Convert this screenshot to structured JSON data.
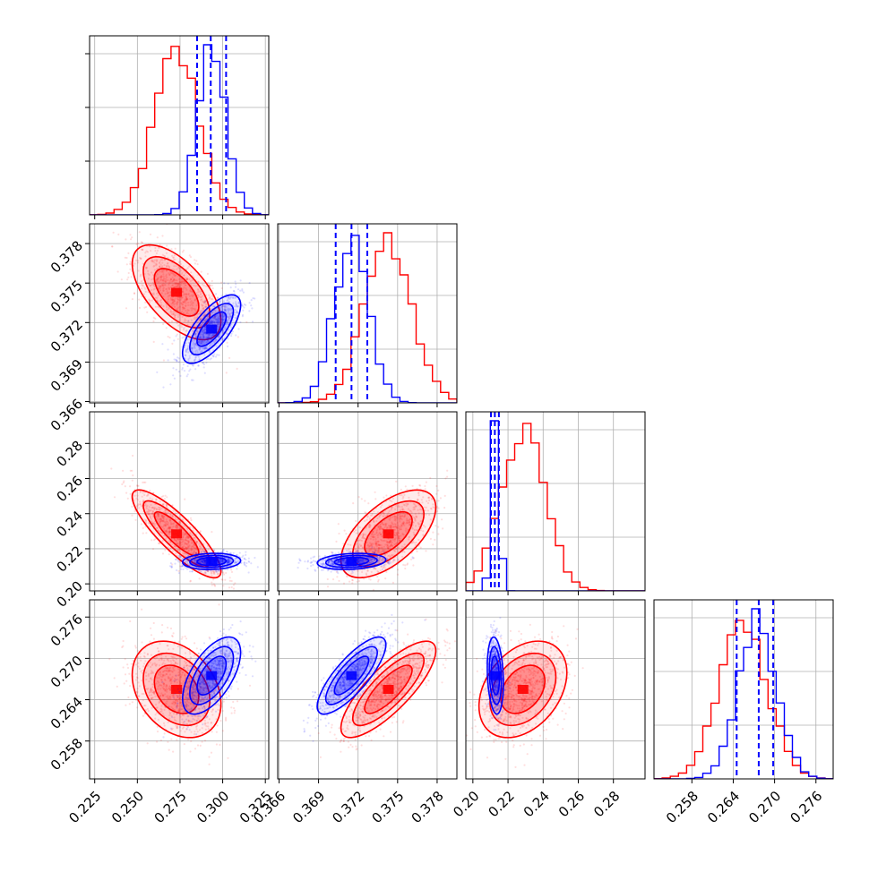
{
  "chart_data": {
    "type": "scatter",
    "subtype": "corner-plot",
    "grid": true,
    "legend": "none",
    "colors": {
      "sample_a": "#ff0000",
      "sample_b": "#0000ff"
    },
    "parameters": [
      {
        "range": [
          0.222,
          0.327
        ],
        "ticks": [
          "0.225",
          "0.250",
          "0.275",
          "0.300",
          "0.325"
        ],
        "tick_values": [
          0.225,
          0.25,
          0.275,
          0.3,
          0.325
        ]
      },
      {
        "range": [
          0.3659,
          0.3795
        ],
        "ticks": [
          "0.366",
          "0.369",
          "0.372",
          "0.375",
          "0.378"
        ],
        "tick_values": [
          0.366,
          0.369,
          0.372,
          0.375,
          0.378
        ]
      },
      {
        "range": [
          0.196,
          0.298
        ],
        "ticks": [
          "0.20",
          "0.22",
          "0.24",
          "0.26",
          "0.28"
        ],
        "tick_values": [
          0.2,
          0.22,
          0.24,
          0.26,
          0.28
        ]
      },
      {
        "range": [
          0.2525,
          0.2785
        ],
        "ticks": [
          "0.258",
          "0.264",
          "0.270",
          "0.276"
        ],
        "tick_values": [
          0.258,
          0.264,
          0.27,
          0.276
        ]
      }
    ],
    "series": [
      {
        "color": "#ff0000",
        "means": [
          0.273,
          0.3743,
          0.2285,
          0.2655
        ],
        "sds": [
          0.013,
          0.0018,
          0.0125,
          0.0035
        ],
        "correlations": {
          "0-1": -0.6,
          "0-2": -0.85,
          "0-3": -0.3,
          "1-2": 0.6,
          "1-3": 0.8,
          "2-3": 0.35
        },
        "quantiles": null
      },
      {
        "color": "#0000ff",
        "means": [
          0.2935,
          0.3715,
          0.2128,
          0.2675
        ],
        "sds": [
          0.0085,
          0.0013,
          0.0023,
          0.0028
        ],
        "correlations": {
          "0-1": 0.7,
          "0-2": 0.1,
          "0-3": 0.6,
          "1-2": 0.2,
          "1-3": 0.8,
          "2-3": -0.2
        },
        "quantiles": [
          [
            0.285,
            0.293,
            0.302
          ],
          [
            0.3703,
            0.3715,
            0.3727
          ],
          [
            0.2103,
            0.2125,
            0.2148
          ],
          [
            0.2645,
            0.2677,
            0.2698
          ]
        ]
      }
    ]
  }
}
